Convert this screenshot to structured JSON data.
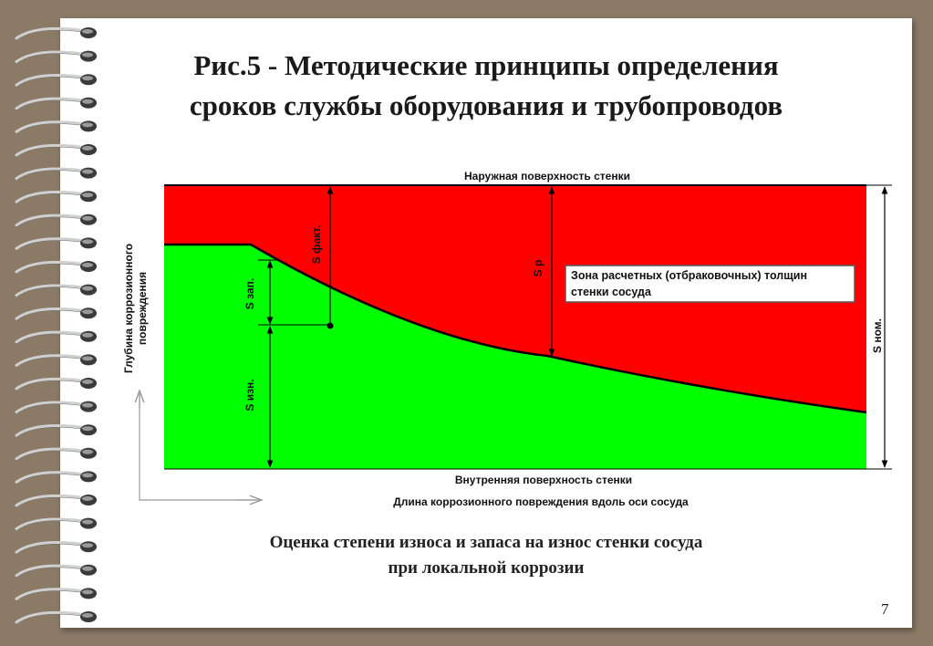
{
  "title": {
    "line1": "Рис.5 - Методические принципы определения",
    "line2": "сроков службы оборудования и трубопроводов"
  },
  "diagram": {
    "outer_surface": "Наружная поверхность стенки",
    "inner_surface": "Внутренняя поверхность стенки",
    "x_axis_label": "Длина коррозионного повреждения вдоль оси сосуда",
    "y_axis_label_line1": "Глубина коррозионного",
    "y_axis_label_line2": "повреждения",
    "legend_line1": "Зона расчетных (отбраковочных) толщин",
    "legend_line2": "стенки сосуда",
    "s_fact": "S факт.",
    "s_p": "S р",
    "s_zap": "S зап.",
    "s_izn": "S изн.",
    "s_nom": "S ном.",
    "colors": {
      "red_zone": "#ff0000",
      "green_zone": "#00ff00"
    }
  },
  "caption": {
    "line1": "Оценка степени износа и запаса на износ стенки сосуда",
    "line2": "при локальной коррозии"
  },
  "page_number": "7"
}
